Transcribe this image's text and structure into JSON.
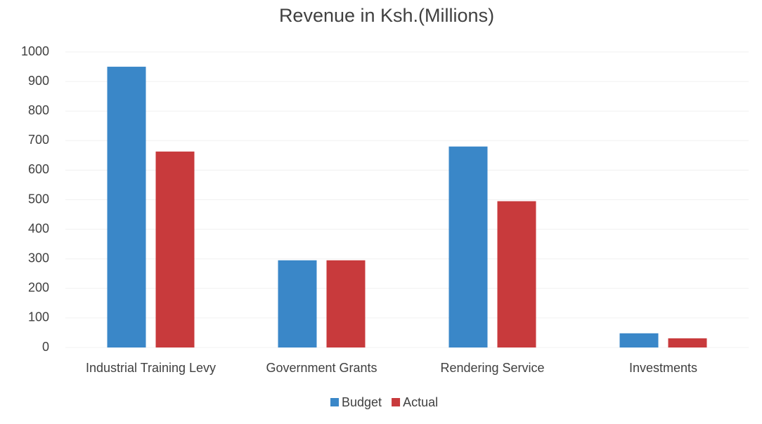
{
  "chart_data": {
    "type": "bar",
    "title": "Revenue in Ksh.(Millions)",
    "categories": [
      "Industrial Training Levy",
      "Government Grants",
      "Rendering Service",
      "Investments"
    ],
    "series": [
      {
        "name": "Budget",
        "color": "#3a87c8",
        "values": [
          950,
          295,
          680,
          48
        ]
      },
      {
        "name": "Actual",
        "color": "#c83a3c",
        "values": [
          663,
          295,
          495,
          31
        ]
      }
    ],
    "ylim": [
      0,
      1000
    ],
    "yticks": [
      0,
      100,
      200,
      300,
      400,
      500,
      600,
      700,
      800,
      900,
      1000
    ],
    "grid": true,
    "legend": "bottom"
  }
}
